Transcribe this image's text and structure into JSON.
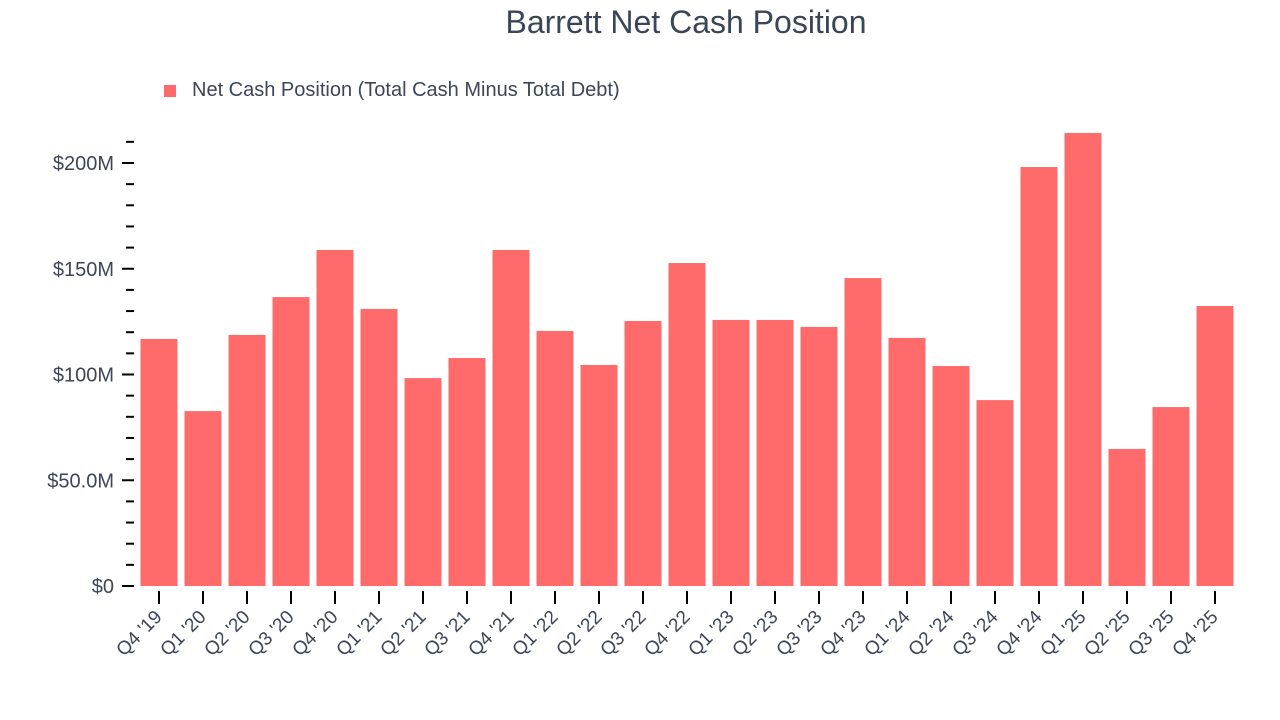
{
  "title": "Barrett Net Cash Position",
  "legend": {
    "label": "Net Cash Position (Total Cash Minus Total Debt)",
    "color": "#ff6b6b"
  },
  "colors": {
    "bar": "#ff6b6b",
    "axis": "#000000",
    "text": "#3d4656"
  },
  "chart_data": {
    "type": "bar",
    "title": "Barrett Net Cash Position",
    "xlabel": "",
    "ylabel": "",
    "ylim": [
      0,
      210
    ],
    "y_unit": "$M",
    "grid": false,
    "legend_position": "top-left",
    "y_ticks": [
      {
        "value": 0,
        "label": "$0"
      },
      {
        "value": 50,
        "label": "$50.0M"
      },
      {
        "value": 100,
        "label": "$100M"
      },
      {
        "value": 150,
        "label": "$150M"
      },
      {
        "value": 200,
        "label": "$200M"
      }
    ],
    "categories": [
      "Q4 '19",
      "Q1 '20",
      "Q2 '20",
      "Q3 '20",
      "Q4 '20",
      "Q1 '21",
      "Q2 '21",
      "Q3 '21",
      "Q4 '21",
      "Q1 '22",
      "Q2 '22",
      "Q3 '22",
      "Q4 '22",
      "Q1 '23",
      "Q2 '23",
      "Q3 '23",
      "Q4 '23",
      "Q1 '24",
      "Q2 '24",
      "Q3 '24",
      "Q4 '24",
      "Q1 '25",
      "Q2 '25",
      "Q3 '25",
      "Q4 '25"
    ],
    "series": [
      {
        "name": "Net Cash Position (Total Cash Minus Total Debt)",
        "values": [
          116.8,
          82.7,
          118.7,
          136.6,
          158.9,
          131.0,
          98.3,
          107.8,
          158.9,
          120.6,
          104.5,
          125.3,
          152.7,
          125.8,
          125.8,
          122.5,
          145.6,
          117.3,
          104.0,
          87.9,
          198.1,
          214.2,
          64.8,
          84.6,
          132.4
        ]
      }
    ]
  }
}
